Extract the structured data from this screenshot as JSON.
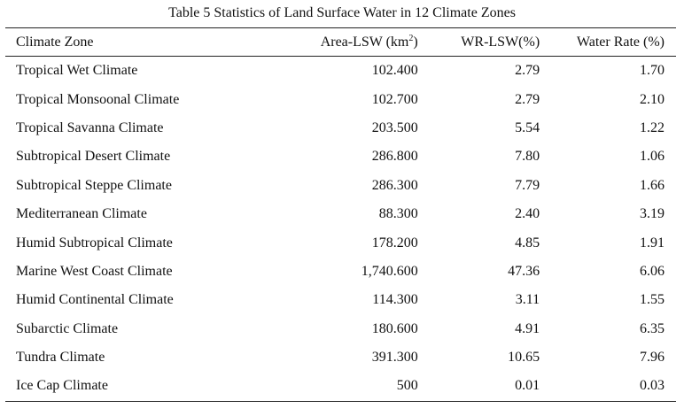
{
  "caption": "Table 5  Statistics of Land Surface Water in 12 Climate Zones",
  "headers": {
    "zone": "Climate Zone",
    "area_prefix": "Area-LSW (km",
    "area_sup": "2",
    "area_suffix": ")",
    "wr": "WR-LSW(%)",
    "rate": "Water Rate (%)"
  },
  "rows": [
    {
      "zone": "Tropical Wet Climate",
      "area": "102.400",
      "wr": "2.79",
      "rate": "1.70"
    },
    {
      "zone": "Tropical Monsoonal Climate",
      "area": "102.700",
      "wr": "2.79",
      "rate": "2.10"
    },
    {
      "zone": "Tropical Savanna Climate",
      "area": "203.500",
      "wr": "5.54",
      "rate": "1.22"
    },
    {
      "zone": "Subtropical Desert Climate",
      "area": "286.800",
      "wr": "7.80",
      "rate": "1.06"
    },
    {
      "zone": "Subtropical Steppe Climate",
      "area": "286.300",
      "wr": "7.79",
      "rate": "1.66"
    },
    {
      "zone": "Mediterranean Climate",
      "area": "88.300",
      "wr": "2.40",
      "rate": "3.19"
    },
    {
      "zone": "Humid Subtropical Climate",
      "area": "178.200",
      "wr": "4.85",
      "rate": "1.91"
    },
    {
      "zone": "Marine West Coast Climate",
      "area": "1,740.600",
      "wr": "47.36",
      "rate": "6.06"
    },
    {
      "zone": "Humid Continental Climate",
      "area": "114.300",
      "wr": "3.11",
      "rate": "1.55"
    },
    {
      "zone": "Subarctic Climate",
      "area": "180.600",
      "wr": "4.91",
      "rate": "6.35"
    },
    {
      "zone": "Tundra Climate",
      "area": "391.300",
      "wr": "10.65",
      "rate": "7.96"
    },
    {
      "zone": "Ice Cap Climate",
      "area": "500",
      "wr": "0.01",
      "rate": "0.03"
    }
  ]
}
